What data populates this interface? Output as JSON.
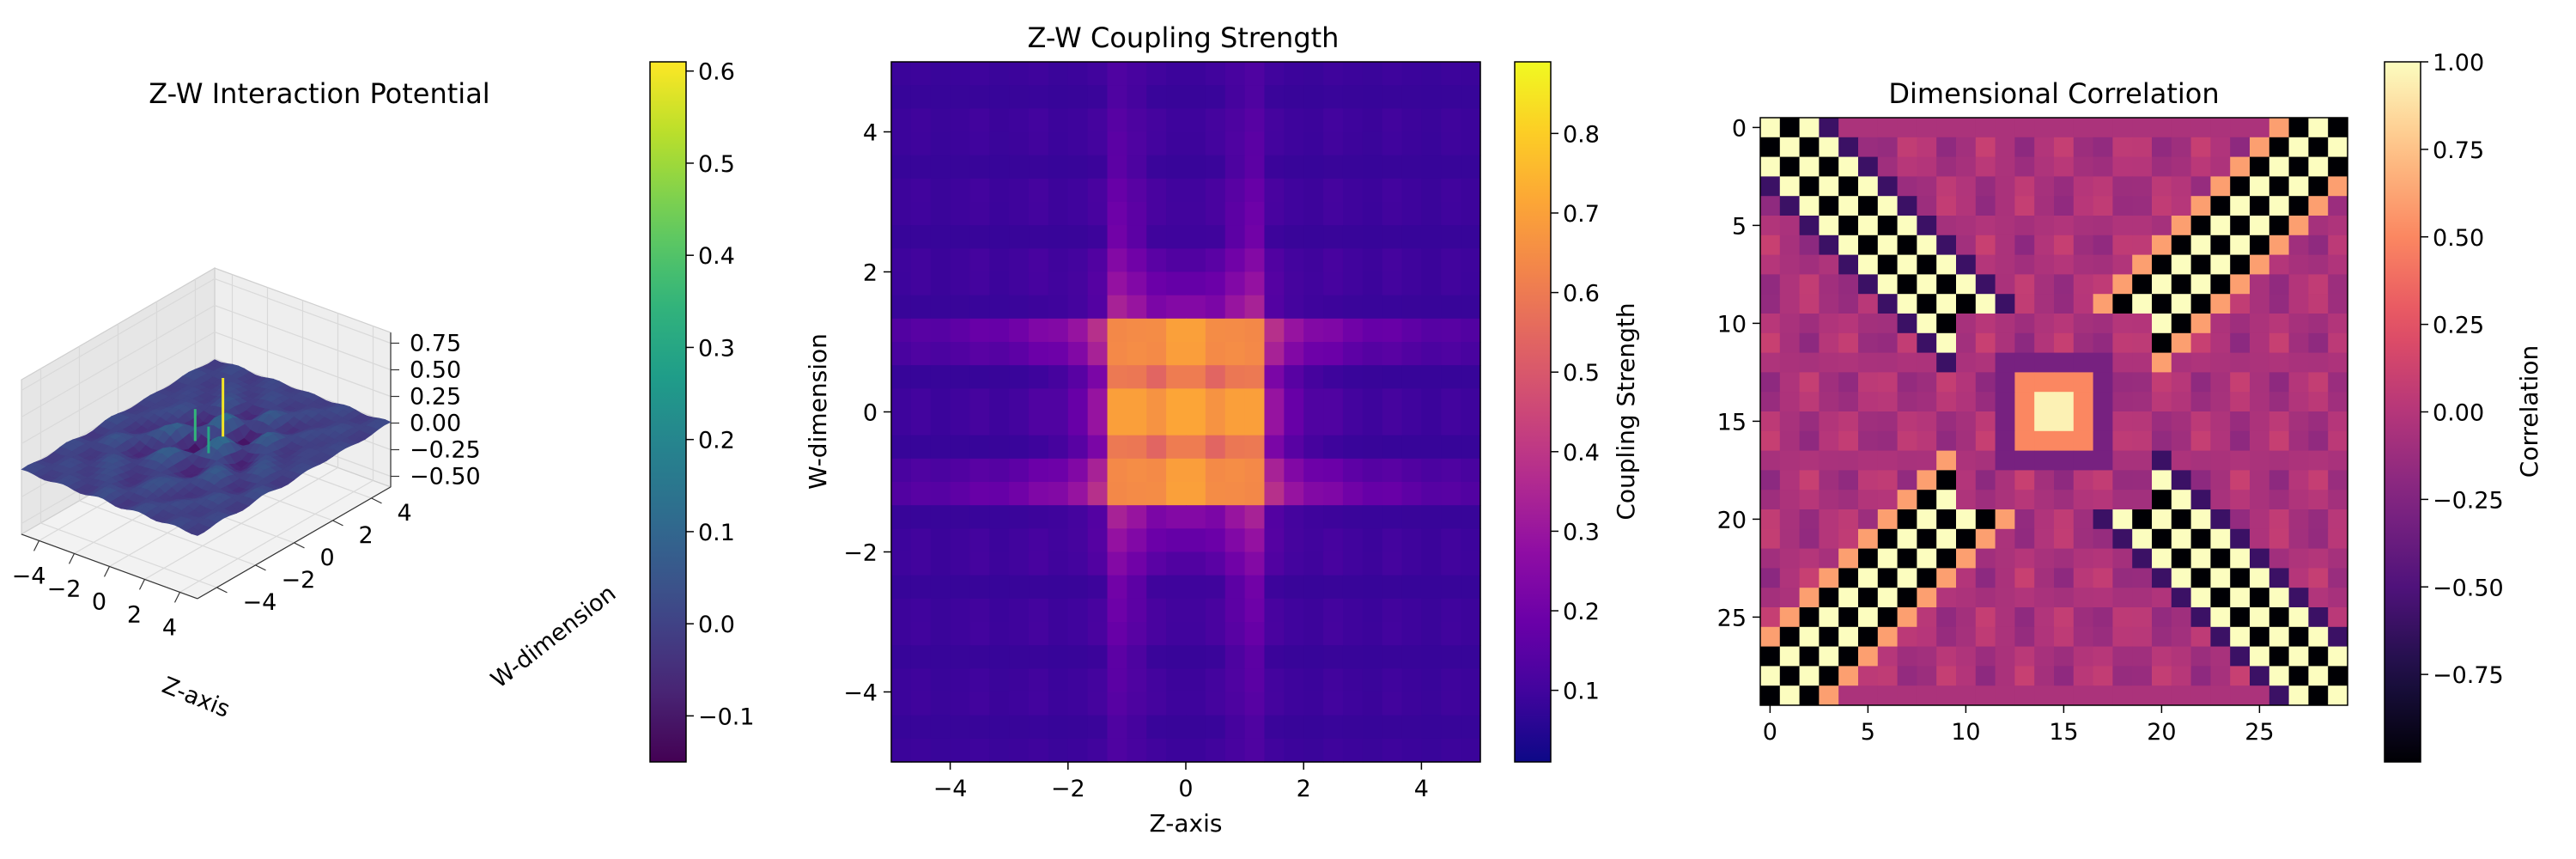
{
  "chart_data": [
    {
      "type": "surface3d",
      "title": "Z-W Interaction Potential",
      "xlabel": "Z-axis",
      "ylabel": "W-dimension",
      "zlabel": "",
      "x_ticks": [
        "−4",
        "−2",
        "0",
        "2",
        "4"
      ],
      "y_ticks": [
        "−4",
        "−2",
        "0",
        "2",
        "4"
      ],
      "z_ticks": [
        "0.75",
        "0.50",
        "0.25",
        "0.00",
        "−0.25",
        "−0.50"
      ],
      "xlim": [
        -5,
        5
      ],
      "ylim": [
        -5,
        5
      ],
      "zlim": [
        -0.6,
        0.85
      ],
      "colormap": "viridis",
      "colorbar": {
        "min": -0.15,
        "max": 0.61,
        "ticks": [
          "0.6",
          "0.5",
          "0.4",
          "0.3",
          "0.2",
          "0.1",
          "0.0",
          "−0.1"
        ],
        "tick_values": [
          0.6,
          0.5,
          0.4,
          0.3,
          0.2,
          0.1,
          0.0,
          -0.1
        ]
      }
    },
    {
      "type": "heatmap",
      "title": "Z-W Coupling Strength",
      "xlabel": "Z-axis",
      "ylabel": "W-dimension",
      "x_ticks": [
        "−4",
        "−2",
        "0",
        "2",
        "4"
      ],
      "x_tick_values": [
        -4,
        -2,
        0,
        2,
        4
      ],
      "y_ticks": [
        "4",
        "2",
        "0",
        "−2",
        "−4"
      ],
      "y_tick_values": [
        4,
        2,
        0,
        -2,
        -4
      ],
      "xlim": [
        -5,
        5
      ],
      "ylim": [
        -5,
        5
      ],
      "grid_size": 30,
      "colormap": "plasma",
      "colorbar": {
        "label": "Coupling Strength",
        "min": 0.01,
        "max": 0.89,
        "ticks": [
          "0.8",
          "0.7",
          "0.6",
          "0.5",
          "0.4",
          "0.3",
          "0.2",
          "0.1"
        ],
        "tick_values": [
          0.8,
          0.7,
          0.6,
          0.5,
          0.4,
          0.3,
          0.2,
          0.1
        ]
      }
    },
    {
      "type": "heatmap",
      "title": "Dimensional Correlation",
      "xlabel": "",
      "ylabel": "",
      "x_ticks": [
        "0",
        "5",
        "10",
        "15",
        "20",
        "25"
      ],
      "y_ticks": [
        "0",
        "5",
        "10",
        "15",
        "20",
        "25"
      ],
      "tick_values": [
        0,
        5,
        10,
        15,
        20,
        25
      ],
      "grid_size": 30,
      "colormap": "magma",
      "colorbar": {
        "label": "Correlation",
        "min": -1.0,
        "max": 1.0,
        "ticks": [
          "1.00",
          "0.75",
          "0.50",
          "0.25",
          "0.00",
          "−0.25",
          "−0.50",
          "−0.75"
        ],
        "tick_values": [
          1.0,
          0.75,
          0.5,
          0.25,
          0.0,
          -0.25,
          -0.5,
          -0.75
        ]
      }
    }
  ]
}
